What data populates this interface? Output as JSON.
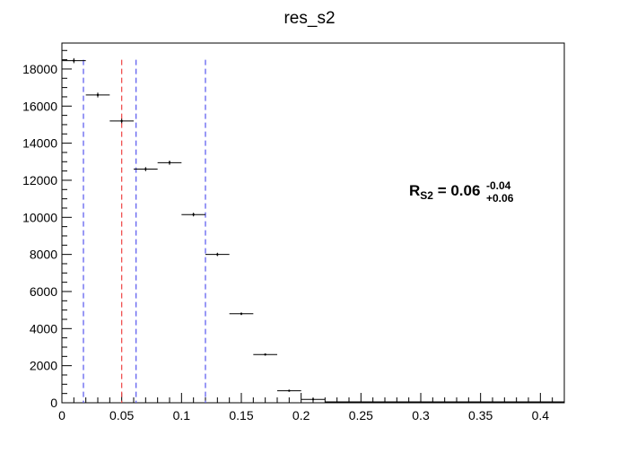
{
  "chart_data": {
    "type": "scatter",
    "title": "res_s2",
    "x": [
      0.01,
      0.03,
      0.05,
      0.07,
      0.09,
      0.11,
      0.13,
      0.15,
      0.17,
      0.19,
      0.21
    ],
    "y": [
      18450,
      16600,
      15200,
      12600,
      12950,
      10150,
      8000,
      4800,
      2600,
      650,
      180
    ],
    "x_error": 0.01,
    "y_error": [
      135,
      130,
      120,
      110,
      115,
      100,
      90,
      70,
      50,
      25,
      15
    ],
    "xlim": [
      0,
      0.42
    ],
    "ylim": [
      0,
      19400
    ],
    "x_ticks": [
      0,
      0.05,
      0.1,
      0.15,
      0.2,
      0.25,
      0.3,
      0.35,
      0.4
    ],
    "x_tick_labels": [
      "0",
      "0.05",
      "0.1",
      "0.15",
      "0.2",
      "0.25",
      "0.3",
      "0.35",
      "0.4"
    ],
    "y_ticks": [
      0,
      2000,
      4000,
      6000,
      8000,
      10000,
      12000,
      14000,
      16000,
      18000
    ],
    "y_tick_labels": [
      "0",
      "2000",
      "4000",
      "6000",
      "8000",
      "10000",
      "12000",
      "14000",
      "16000",
      "18000"
    ],
    "vlines": [
      {
        "x": 0.018,
        "color": "#5555ee"
      },
      {
        "x": 0.05,
        "color": "#ee4444"
      },
      {
        "x": 0.062,
        "color": "#5555ee"
      },
      {
        "x": 0.12,
        "color": "#5555ee"
      }
    ],
    "vline_top": 18500,
    "grid": false,
    "annotation": {
      "base": "R",
      "base_sub": "S2",
      "value": " = 0.06",
      "sup": "-0.04",
      "sub": "+0.06"
    }
  }
}
